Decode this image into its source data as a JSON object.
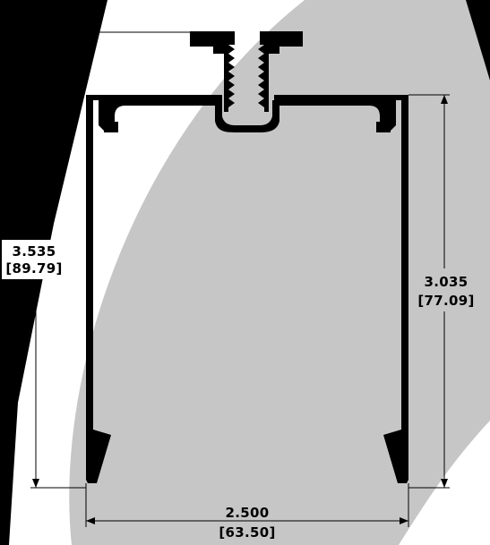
{
  "drawing": {
    "dimensions": {
      "overall_height": {
        "inch": "3.535",
        "mm": "[89.79]"
      },
      "side_height": {
        "inch": "3.035",
        "mm": "[77.09]"
      },
      "width": {
        "inch": "2.500",
        "mm": "[63.50]"
      }
    },
    "colors": {
      "background": "#000000",
      "watermark": "#c8c8c8",
      "light_area": "#ffffff",
      "profile": "#000000",
      "dimension_lines": "#000000"
    }
  }
}
